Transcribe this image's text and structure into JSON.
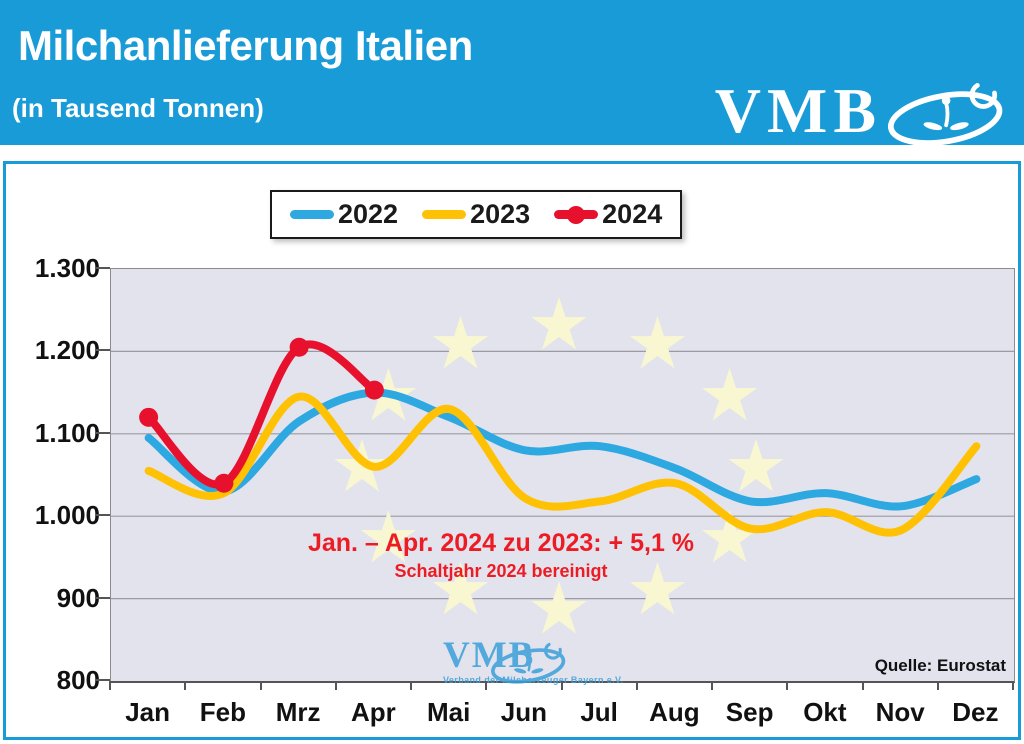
{
  "colors": {
    "header_blue": "#189BD6",
    "plot_background": "#E3E3EE",
    "gridline": "#9A9AA0",
    "axis": "#555555",
    "star_watermark": "#F8F7D2",
    "series_2022": "#2EA8E0",
    "series_2023": "#FFC103",
    "series_2024": "#E8112D",
    "annotation_red": "#ED1C24"
  },
  "header": {
    "title": "Milchanlieferung Italien",
    "subtitle": "(in Tausend Tonnen)",
    "brand": "VMB"
  },
  "legend": {
    "items": [
      {
        "label": "2022",
        "color": "#2EA8E0",
        "marker": false
      },
      {
        "label": "2023",
        "color": "#FFC103",
        "marker": false
      },
      {
        "label": "2024",
        "color": "#E8112D",
        "marker": true
      }
    ]
  },
  "chart_data": {
    "type": "line",
    "title": "Milchanlieferung Italien (in Tausend Tonnen)",
    "categories": [
      "Jan",
      "Feb",
      "Mrz",
      "Apr",
      "Mai",
      "Jun",
      "Jul",
      "Aug",
      "Sep",
      "Okt",
      "Nov",
      "Dez"
    ],
    "series": [
      {
        "name": "2022",
        "color": "#2EA8E0",
        "markers": false,
        "values": [
          1095,
          1030,
          1115,
          1150,
          1120,
          1080,
          1085,
          1058,
          1018,
          1028,
          1012,
          1045
        ]
      },
      {
        "name": "2023",
        "color": "#FFC103",
        "markers": false,
        "values": [
          1055,
          1028,
          1145,
          1060,
          1130,
          1022,
          1018,
          1040,
          985,
          1005,
          983,
          1085
        ]
      },
      {
        "name": "2024",
        "color": "#E8112D",
        "markers": true,
        "values": [
          1120,
          1040,
          1205,
          1153
        ]
      }
    ],
    "ylim": [
      800,
      1300
    ],
    "ytick_values": [
      1300,
      1200,
      1100,
      1000,
      900,
      800
    ],
    "ytick_labels": [
      "1.300",
      "1.200",
      "1.100",
      "1.000",
      "900",
      "800"
    ],
    "grid": true,
    "legend_position": "top"
  },
  "annotation": {
    "line1": "Jan. – Apr. 2024 zu 2023: + 5,1 %",
    "line2": "Schaltjahr 2024 bereinigt",
    "color": "#ED1C24"
  },
  "watermark": {
    "brand": "VMB",
    "subtext": "Verband der Milcherzeuger Bayern e.V."
  },
  "source_label": "Quelle: Eurostat"
}
